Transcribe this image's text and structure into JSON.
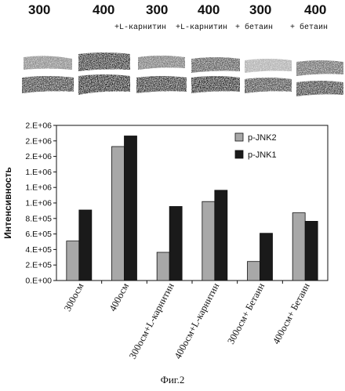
{
  "blot": {
    "lanes": [
      {
        "number": "300",
        "condition": ""
      },
      {
        "number": "400",
        "condition": ""
      },
      {
        "number": "300",
        "condition": "+L-карнитин"
      },
      {
        "number": "400",
        "condition": "+L-карнитин"
      },
      {
        "number": "300",
        "condition": "+ бетаин"
      },
      {
        "number": "400",
        "condition": "+ бетаин"
      }
    ]
  },
  "chart_data": {
    "type": "bar",
    "ylabel": "Интенсивность",
    "categories": [
      "300осм",
      "400осм",
      "300осм+L-карнитин",
      "400осм+L-карнитин",
      "300осм+ Бетаин",
      "400осм+ Бетаин"
    ],
    "series": [
      {
        "name": "p-JNK2",
        "color": "#a8a8a8",
        "values": [
          560000,
          1900000,
          400000,
          1120000,
          270000,
          960000
        ]
      },
      {
        "name": "p-JNK1",
        "color": "#1a1a1a",
        "values": [
          1000000,
          2050000,
          1050000,
          1280000,
          670000,
          840000
        ]
      }
    ],
    "yticks": [
      "0.E+00",
      "2.E+05",
      "4.E+05",
      "6.E+05",
      "8.E+05",
      "1.E+06",
      "1.E+06",
      "1.E+06",
      "2.E+06",
      "2.E+06",
      "2.E+06"
    ],
    "ylim": [
      0,
      2200000
    ],
    "legend_position": "top-right",
    "grid": false
  },
  "caption": "Фиг.2"
}
